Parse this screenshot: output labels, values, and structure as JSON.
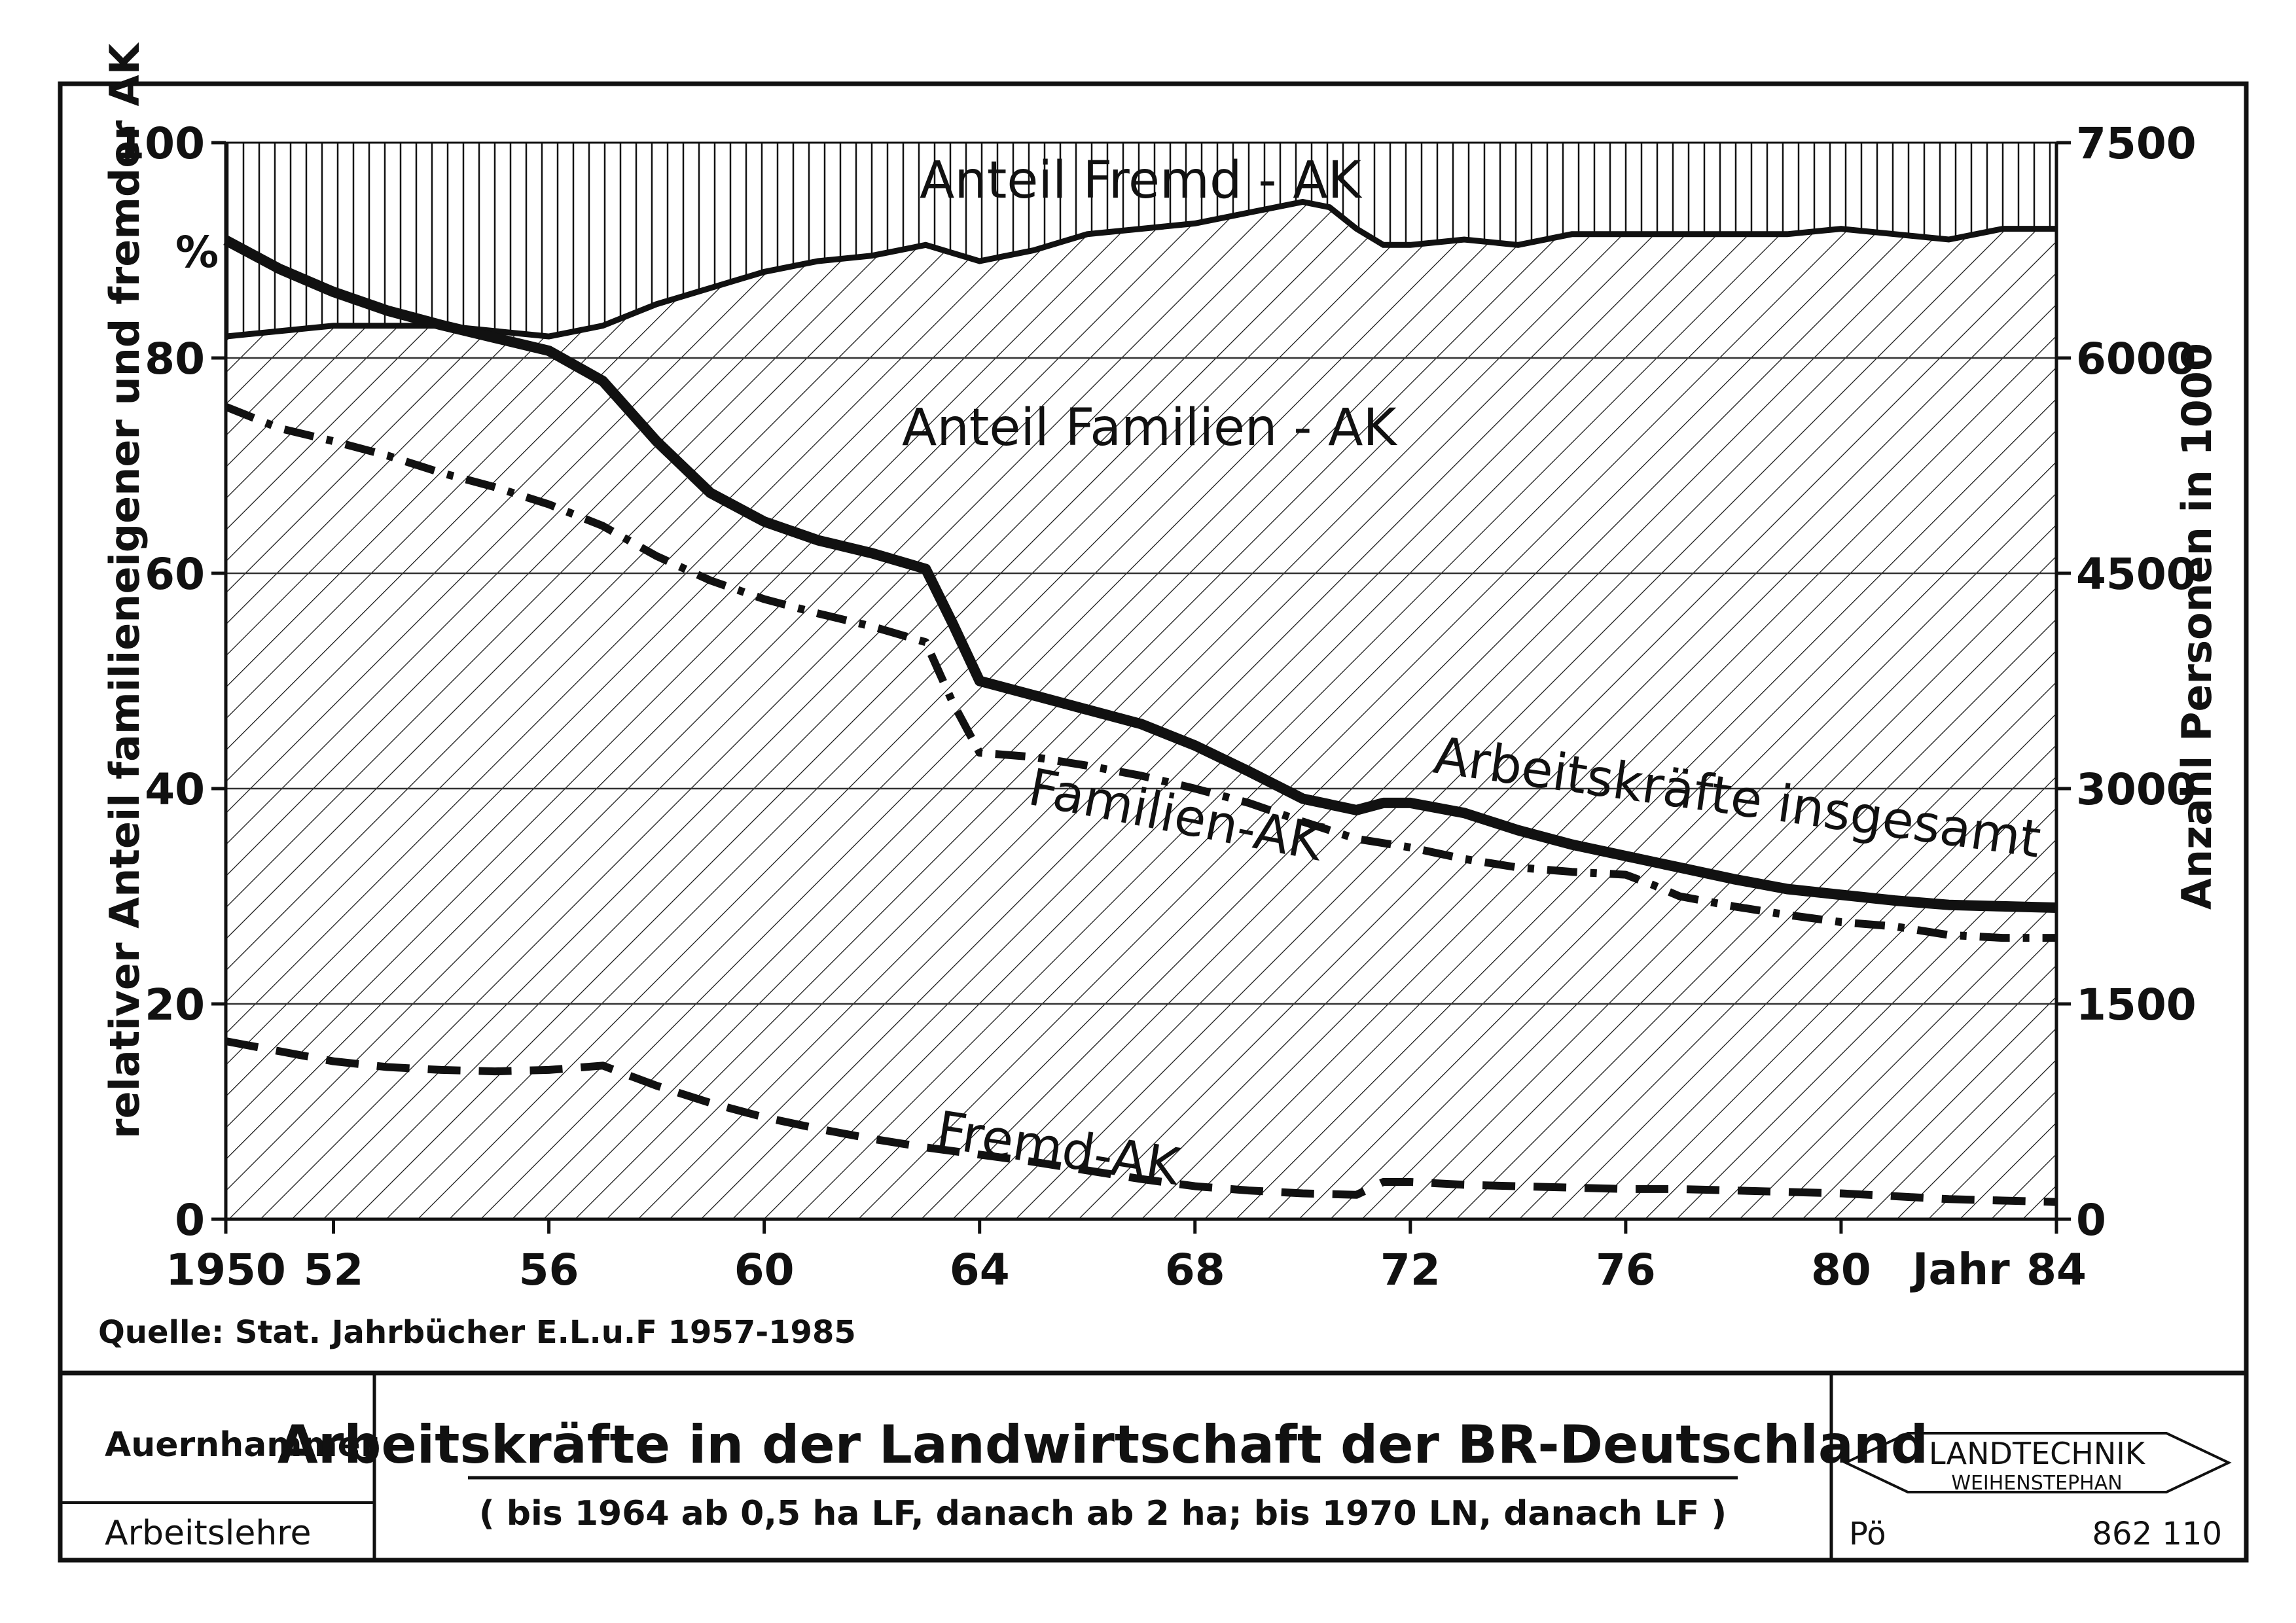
{
  "chart_data": {
    "type": "area",
    "left_axis": {
      "label": "relativer Anteil familieneigener und fremder AK",
      "unit": "%",
      "ticks": [
        "0",
        "20",
        "40",
        "60",
        "80",
        "100"
      ],
      "ylim": [
        0,
        100
      ]
    },
    "right_axis": {
      "label": "Anzahl Personen in 1000",
      "ticks": [
        "0",
        "1500",
        "3000",
        "4500",
        "6000",
        "7500"
      ],
      "ylim": [
        0,
        7500
      ]
    },
    "x_axis": {
      "label": "Jahr",
      "ticks": [
        "1950",
        "52",
        "56",
        "60",
        "64",
        "68",
        "72",
        "76",
        "80",
        "84"
      ],
      "xlim": [
        1950,
        1984
      ]
    },
    "grid": "horizontal",
    "areas": [
      {
        "name": "Anteil Fremd-AK",
        "pattern": "vertical-lines",
        "values": [
          [
            1950,
            100
          ],
          [
            1984,
            100
          ]
        ]
      },
      {
        "name": "Anteil Familien-AK",
        "pattern": "diagonal-hatch",
        "axis": "left",
        "boundary": [
          [
            1950,
            82
          ],
          [
            1952,
            83
          ],
          [
            1954,
            83
          ],
          [
            1956,
            82
          ],
          [
            1957,
            83
          ],
          [
            1958,
            85
          ],
          [
            1960,
            88
          ],
          [
            1961,
            89
          ],
          [
            1962,
            89.5
          ],
          [
            1963,
            90.5
          ],
          [
            1964,
            89
          ],
          [
            1965,
            90
          ],
          [
            1966,
            91.5
          ],
          [
            1968,
            92.5
          ],
          [
            1969,
            93.5
          ],
          [
            1970,
            94.5
          ],
          [
            1970.5,
            94
          ],
          [
            1971,
            92
          ],
          [
            1971.5,
            90.5
          ],
          [
            1972,
            90.5
          ],
          [
            1973,
            91
          ],
          [
            1974,
            90.5
          ],
          [
            1975,
            91.5
          ],
          [
            1976,
            91.5
          ],
          [
            1978,
            91.5
          ],
          [
            1979,
            91.5
          ],
          [
            1980,
            92
          ],
          [
            1981,
            91.5
          ],
          [
            1982,
            91
          ],
          [
            1983,
            92
          ],
          [
            1984,
            92
          ]
        ]
      }
    ],
    "series": [
      {
        "name": "Arbeitskräfte insgesamt",
        "axis": "right",
        "style": "solid",
        "x": [
          1950,
          1951,
          1952,
          1953,
          1954,
          1955,
          1956,
          1957,
          1958,
          1959,
          1960,
          1961,
          1962,
          1963,
          1963.5,
          1964,
          1965,
          1966,
          1967,
          1968,
          1969,
          1970,
          1971,
          1971.5,
          1972,
          1973,
          1974,
          1975,
          1976,
          1977,
          1978,
          1979,
          1980,
          1981,
          1982,
          1983,
          1984
        ],
        "y": [
          6820,
          6620,
          6460,
          6330,
          6230,
          6140,
          6050,
          5840,
          5420,
          5060,
          4860,
          4730,
          4640,
          4530,
          4150,
          3750,
          3650,
          3550,
          3450,
          3300,
          3120,
          2930,
          2850,
          2900,
          2900,
          2830,
          2710,
          2610,
          2530,
          2450,
          2370,
          2300,
          2260,
          2220,
          2190,
          2180,
          2170
        ]
      },
      {
        "name": "Familien-AK",
        "axis": "right",
        "style": "dash-dot",
        "x": [
          1950,
          1951,
          1952,
          1953,
          1954,
          1955,
          1956,
          1957,
          1958,
          1959,
          1960,
          1961,
          1962,
          1963,
          1963.5,
          1964,
          1965,
          1966,
          1967,
          1968,
          1969,
          1970,
          1971,
          1972,
          1973,
          1974,
          1975,
          1976,
          1976.5,
          1977,
          1978,
          1979,
          1980,
          1981,
          1982,
          1983,
          1984
        ],
        "y": [
          5660,
          5510,
          5420,
          5320,
          5200,
          5100,
          4980,
          4830,
          4620,
          4450,
          4320,
          4220,
          4130,
          4020,
          3600,
          3250,
          3220,
          3160,
          3090,
          3000,
          2900,
          2770,
          2650,
          2590,
          2510,
          2450,
          2420,
          2400,
          2330,
          2250,
          2180,
          2120,
          2070,
          2040,
          1980,
          1960,
          1960
        ]
      },
      {
        "name": "Fremd-AK",
        "axis": "right",
        "style": "dashed",
        "x": [
          1950,
          1951,
          1952,
          1953,
          1954,
          1955,
          1956,
          1957,
          1958,
          1959,
          1960,
          1961,
          1962,
          1963,
          1964,
          1965,
          1966,
          1967,
          1968,
          1969,
          1970,
          1971,
          1971.5,
          1972,
          1973,
          1974,
          1975,
          1976,
          1977,
          1978,
          1979,
          1980,
          1981,
          1982,
          1983,
          1984
        ],
        "y": [
          1240,
          1170,
          1100,
          1060,
          1040,
          1030,
          1040,
          1070,
          930,
          810,
          710,
          630,
          560,
          500,
          450,
          400,
          340,
          280,
          230,
          200,
          180,
          170,
          260,
          260,
          240,
          230,
          220,
          210,
          210,
          200,
          190,
          180,
          160,
          140,
          130,
          120
        ]
      }
    ],
    "annotations": {
      "label_fremd_share": "Anteil Fremd - AK",
      "label_familien_share": "Anteil Familien - AK",
      "label_total": "Arbeitskräfte insgesamt",
      "label_familien": "Familien-AK",
      "label_fremd": "Fremd-AK",
      "percent_sign": "%",
      "year_label": "Jahr"
    },
    "source": "Quelle: Stat. Jahrbücher E.L.u.F 1957-1985"
  },
  "title_block": {
    "author": "Auernhammer",
    "department": "Arbeitslehre",
    "title": "Arbeitskräfte in der Landwirtschaft der BR-Deutschland",
    "subtitle": "( bis 1964 ab 0,5 ha LF, danach ab 2 ha; bis 1970 LN, danach LF )",
    "logo_line1": "LANDTECHNIK",
    "logo_line2": "WEIHENSTEPHAN",
    "drawer": "Pö",
    "number": "862 110"
  },
  "colors": {
    "ink": "#111111",
    "paper": "#ffffff",
    "grid": "#333333"
  }
}
